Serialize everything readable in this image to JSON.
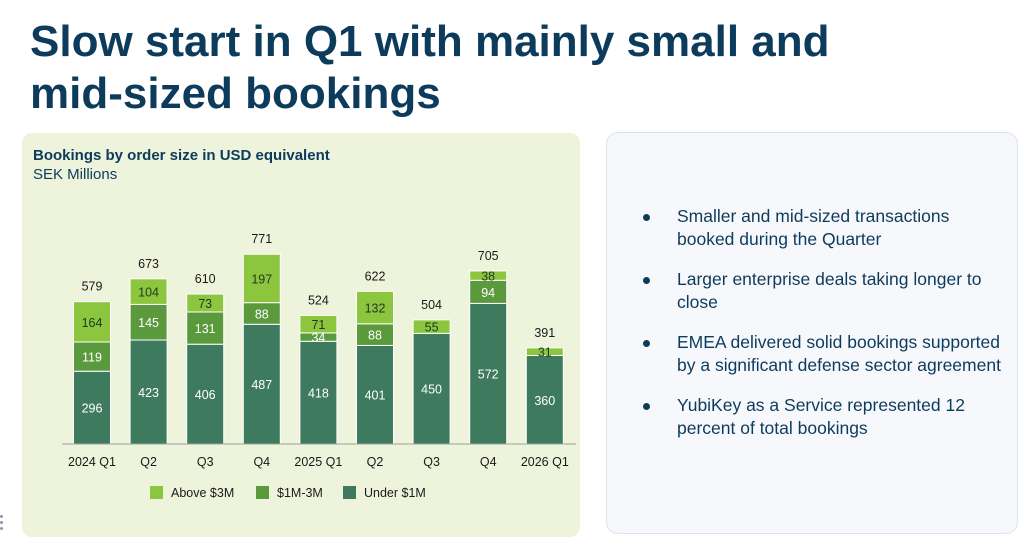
{
  "slide": {
    "title_line1": "Slow start in Q1 with mainly small and",
    "title_line2": "mid-sized bookings"
  },
  "chart_data": {
    "type": "bar",
    "stacked": true,
    "title": "Bookings by order size in USD equivalent",
    "subtitle": "SEK Millions",
    "categories": [
      "2024 Q1",
      "Q2",
      "Q3",
      "Q4",
      "2025 Q1",
      "Q2",
      "Q3",
      "Q4",
      "2026 Q1"
    ],
    "series": [
      {
        "name": "Under $1M",
        "color": "#3d7a5e",
        "values": [
          296,
          423,
          406,
          487,
          418,
          401,
          450,
          572,
          360
        ]
      },
      {
        "name": "$1M-3M",
        "color": "#5b9a3c",
        "values": [
          119,
          145,
          131,
          88,
          34,
          88,
          null,
          94,
          null
        ]
      },
      {
        "name": "Above $3M",
        "color": "#8cc63f",
        "values": [
          164,
          104,
          73,
          197,
          71,
          132,
          55,
          38,
          31
        ]
      }
    ],
    "totals": [
      579,
      673,
      610,
      771,
      524,
      622,
      504,
      705,
      391
    ],
    "ylim": [
      0,
      800
    ],
    "grid": false,
    "legend_position": "bottom"
  },
  "bullets": [
    "Smaller and mid-sized transactions booked during the Quarter",
    "Larger enterprise deals taking longer to close",
    "EMEA delivered solid bookings supported by a significant defense sector agreement",
    "YubiKey as a Service represented 12 percent of total bookings"
  ]
}
